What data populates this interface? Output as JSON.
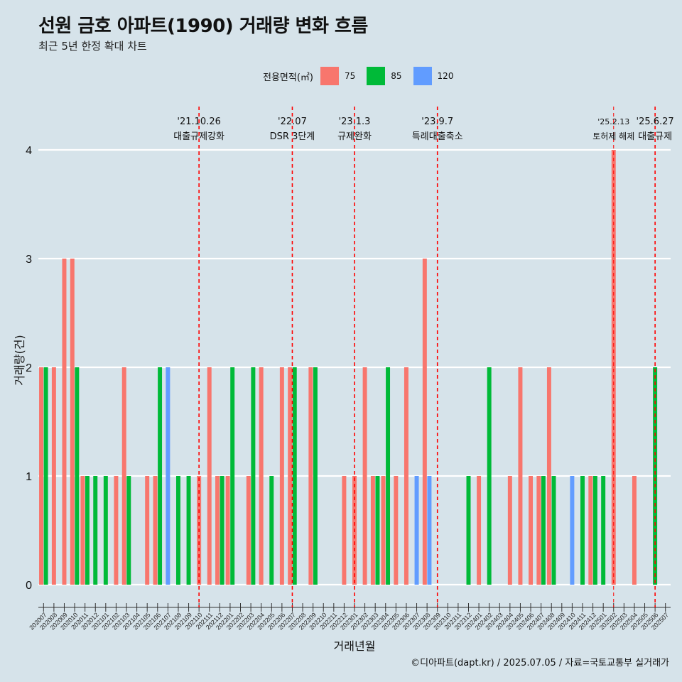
{
  "title": "선원 금호 아파트(1990) 거래량 변화 흐름",
  "subtitle": "최근 5년 한정 확대 차트",
  "caption": "©디아파트(dapt.kr) / 2025.07.05 / 자료=국토교통부 실거래가",
  "legend": {
    "title": "전용면적(㎡)",
    "items": [
      {
        "label": "75",
        "color": "#F8766D"
      },
      {
        "label": "85",
        "color": "#00BA38"
      },
      {
        "label": "120",
        "color": "#619CFF"
      }
    ]
  },
  "chart_data": {
    "type": "bar",
    "xlabel": "거래년월",
    "ylabel": "거래량(건)",
    "ylim": [
      0,
      4
    ],
    "yticks": [
      0,
      1,
      2,
      3,
      4
    ],
    "categories": [
      "202007",
      "202008",
      "202009",
      "202010",
      "202011",
      "202012",
      "202101",
      "202102",
      "202103",
      "202104",
      "202105",
      "202106",
      "202107",
      "202108",
      "202109",
      "202110",
      "202111",
      "202112",
      "202201",
      "202202",
      "202203",
      "202204",
      "202205",
      "202206",
      "202207",
      "202208",
      "202209",
      "202210",
      "202211",
      "202212",
      "202301",
      "202302",
      "202303",
      "202304",
      "202305",
      "202306",
      "202307",
      "202308",
      "202309",
      "202310",
      "202311",
      "202312",
      "202401",
      "202402",
      "202403",
      "202404",
      "202405",
      "202406",
      "202407",
      "202408",
      "202409",
      "202410",
      "202411",
      "202412",
      "202501",
      "202502",
      "202503",
      "202504",
      "202505",
      "202506",
      "202507"
    ],
    "series": [
      {
        "name": "75",
        "color": "#F8766D",
        "values": [
          2,
          2,
          3,
          3,
          1,
          0,
          0,
          1,
          2,
          0,
          1,
          1,
          0,
          0,
          0,
          1,
          2,
          1,
          1,
          0,
          1,
          2,
          0,
          2,
          2,
          0,
          2,
          0,
          0,
          1,
          1,
          2,
          1,
          1,
          1,
          2,
          0,
          3,
          0,
          0,
          0,
          0,
          1,
          0,
          0,
          1,
          2,
          1,
          1,
          2,
          0,
          0,
          0,
          1,
          0,
          4,
          0,
          1,
          0,
          0,
          0
        ]
      },
      {
        "name": "85",
        "color": "#00BA38",
        "values": [
          2,
          0,
          0,
          2,
          1,
          1,
          1,
          0,
          1,
          0,
          0,
          2,
          0,
          1,
          1,
          0,
          0,
          1,
          2,
          0,
          2,
          0,
          1,
          0,
          2,
          0,
          2,
          0,
          0,
          0,
          0,
          0,
          1,
          2,
          0,
          0,
          0,
          0,
          0,
          0,
          0,
          1,
          0,
          2,
          0,
          0,
          0,
          0,
          1,
          1,
          0,
          0,
          1,
          1,
          1,
          0,
          0,
          0,
          0,
          2,
          0
        ]
      },
      {
        "name": "120",
        "color": "#619CFF",
        "values": [
          0,
          0,
          0,
          0,
          0,
          0,
          0,
          0,
          0,
          0,
          0,
          0,
          2,
          0,
          0,
          0,
          0,
          0,
          0,
          0,
          0,
          0,
          0,
          0,
          0,
          0,
          0,
          0,
          0,
          0,
          0,
          0,
          0,
          0,
          0,
          0,
          1,
          1,
          0,
          0,
          0,
          0,
          0,
          0,
          0,
          0,
          0,
          0,
          0,
          0,
          0,
          1,
          0,
          0,
          0,
          0,
          0,
          0,
          0,
          0,
          0
        ]
      }
    ],
    "annotations": [
      {
        "date": "'21.10.26",
        "label": "대출규제강화",
        "category": "202110"
      },
      {
        "date": "'22.07",
        "label": "DSR 3단계",
        "category": "202207"
      },
      {
        "date": "'23.1.3",
        "label": "규제완화",
        "category": "202301"
      },
      {
        "date": "'23.9.7",
        "label": "특례대출축소",
        "category": "202309"
      },
      {
        "date": "'25.2.13",
        "label": "토허제 해제",
        "category": "202502"
      },
      {
        "date": "'25.6.27",
        "label": "대출규제",
        "category": "202506"
      }
    ]
  }
}
